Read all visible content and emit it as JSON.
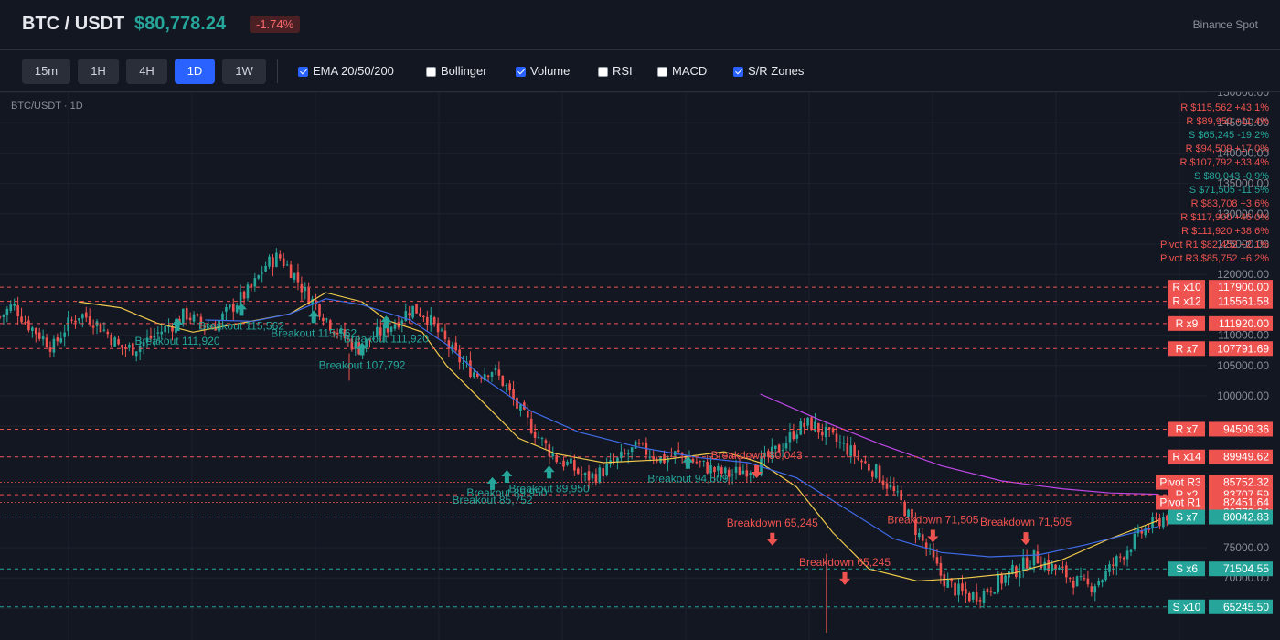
{
  "header": {
    "symbol": "BTC / USDT",
    "price": "$80,778.24",
    "change": "-1.74%",
    "exchange": "Binance Spot"
  },
  "toolbar": {
    "timeframes": [
      {
        "label": "15m",
        "active": false
      },
      {
        "label": "1H",
        "active": false
      },
      {
        "label": "4H",
        "active": false
      },
      {
        "label": "1D",
        "active": true
      },
      {
        "label": "1W",
        "active": false
      }
    ],
    "toggles": [
      {
        "label": "EMA 20/50/200",
        "checked": true
      },
      {
        "label": "Bollinger",
        "checked": false
      },
      {
        "label": "Volume",
        "checked": true
      },
      {
        "label": "RSI",
        "checked": false
      },
      {
        "label": "MACD",
        "checked": false
      },
      {
        "label": "S/R Zones",
        "checked": true
      }
    ]
  },
  "chart": {
    "label": "BTC/USDT · 1D",
    "colors": {
      "up": "#26a69a",
      "down": "#ef5350",
      "ema20": "#f0c94c",
      "ema50": "#3f6be8",
      "ema200": "#c147e9",
      "bg": "#131722",
      "grid": "#1e222d"
    }
  },
  "chart_data": {
    "type": "candlestick",
    "ylim": [
      60000,
      150000
    ],
    "y_ticks": [
      "150000.00",
      "145000.00",
      "140000.00",
      "135000.00",
      "130000.00",
      "125000.00",
      "120000.00",
      "115000.00",
      "110000.00",
      "105000.00",
      "100000.00",
      "95000.00",
      "90000.00",
      "85000.00",
      "80000.00",
      "75000.00",
      "70000.00",
      "65000.00"
    ],
    "current_price": "80778.24",
    "close_path": [
      113000,
      115000,
      112000,
      110000,
      108000,
      111500,
      113500,
      112500,
      110500,
      108000,
      107800,
      109000,
      110500,
      111800,
      113500,
      112000,
      111200,
      113500,
      115800,
      117800,
      121500,
      123000,
      120500,
      117000,
      114500,
      111500,
      109500,
      107800,
      109500,
      111000,
      112500,
      114500,
      113500,
      110500,
      107500,
      105000,
      103500,
      104500,
      102000,
      98000,
      95000,
      92000,
      89500,
      88500,
      86500,
      87000,
      88500,
      90000,
      91500,
      90500,
      89500,
      90500,
      89500,
      88500,
      87500,
      87000,
      87800,
      88500,
      90000,
      92000,
      94500,
      95500,
      94000,
      92500,
      91000,
      89000,
      87500,
      85000,
      82000,
      78000,
      74000,
      70000,
      68000,
      67000,
      67500,
      69000,
      70500,
      72000,
      73500,
      72000,
      71000,
      69500,
      68500,
      70000,
      72500,
      75000,
      77500,
      79000,
      80500,
      80778
    ],
    "ema_points": {
      "ema20": [
        [
          0.065,
          115500
        ],
        [
          0.1,
          114500
        ],
        [
          0.13,
          112000
        ],
        [
          0.16,
          110500
        ],
        [
          0.2,
          112000
        ],
        [
          0.24,
          113500
        ],
        [
          0.27,
          117000
        ],
        [
          0.3,
          115500
        ],
        [
          0.32,
          112500
        ],
        [
          0.35,
          110500
        ],
        [
          0.37,
          105000
        ],
        [
          0.4,
          99000
        ],
        [
          0.43,
          93000
        ],
        [
          0.46,
          90500
        ],
        [
          0.5,
          89000
        ],
        [
          0.55,
          89500
        ],
        [
          0.6,
          90800
        ],
        [
          0.63,
          89000
        ],
        [
          0.66,
          85000
        ],
        [
          0.69,
          77500
        ],
        [
          0.72,
          71500
        ],
        [
          0.76,
          69500
        ],
        [
          0.8,
          70000
        ],
        [
          0.84,
          70800
        ],
        [
          0.88,
          73000
        ],
        [
          0.92,
          76500
        ],
        [
          0.96,
          79500
        ]
      ],
      "ema50": [
        [
          0.17,
          112500
        ],
        [
          0.21,
          112300
        ],
        [
          0.24,
          113500
        ],
        [
          0.27,
          116000
        ],
        [
          0.3,
          115000
        ],
        [
          0.34,
          112500
        ],
        [
          0.37,
          108500
        ],
        [
          0.4,
          103000
        ],
        [
          0.44,
          97500
        ],
        [
          0.48,
          94000
        ],
        [
          0.53,
          91500
        ],
        [
          0.58,
          89800
        ],
        [
          0.62,
          89000
        ],
        [
          0.66,
          86500
        ],
        [
          0.7,
          81500
        ],
        [
          0.74,
          76500
        ],
        [
          0.78,
          74200
        ],
        [
          0.82,
          73500
        ],
        [
          0.86,
          73800
        ],
        [
          0.9,
          75500
        ],
        [
          0.96,
          78500
        ]
      ],
      "ema200": [
        [
          0.63,
          100300
        ],
        [
          0.68,
          96000
        ],
        [
          0.73,
          92000
        ],
        [
          0.78,
          88500
        ],
        [
          0.83,
          86000
        ],
        [
          0.88,
          84700
        ],
        [
          0.92,
          84000
        ],
        [
          0.96,
          83800
        ]
      ]
    },
    "price_labels": [
      {
        "text": "117900.00",
        "tag": "R x10",
        "value": 117900,
        "kind": "resistance"
      },
      {
        "text": "115561.58",
        "tag": "R x12",
        "value": 115561.58,
        "kind": "resistance"
      },
      {
        "text": "111920.00",
        "tag": "R x9",
        "value": 111920,
        "kind": "resistance"
      },
      {
        "text": "107791.69",
        "tag": "R x7",
        "value": 107791.69,
        "kind": "resistance"
      },
      {
        "text": "94509.36",
        "tag": "R x7",
        "value": 94509.36,
        "kind": "resistance"
      },
      {
        "text": "89949.62",
        "tag": "R x14",
        "value": 89949.62,
        "kind": "resistance"
      },
      {
        "text": "85752.32",
        "tag": "Pivot R3",
        "value": 85752.32,
        "kind": "pivot"
      },
      {
        "text": "83707.59",
        "tag": "R x2",
        "value": 83707.59,
        "kind": "resistance"
      },
      {
        "text": "82451.64",
        "tag": "Pivot R1",
        "value": 82451.64,
        "kind": "pivot"
      },
      {
        "text": "80778.24",
        "tag": "",
        "value": 80778.24,
        "kind": "current"
      },
      {
        "text": "80042.83",
        "tag": "S x7",
        "value": 80042.83,
        "kind": "support"
      },
      {
        "text": "71504.55",
        "tag": "S x6",
        "value": 71504.55,
        "kind": "support"
      },
      {
        "text": "65245.50",
        "tag": "S x10",
        "value": 65245.5,
        "kind": "support"
      }
    ],
    "level_list": [
      {
        "text": "R $115,562 +43.1%",
        "kind": "r"
      },
      {
        "text": "R $89,950 +11.4%",
        "kind": "r"
      },
      {
        "text": "S $65,245 -19.2%",
        "kind": "s"
      },
      {
        "text": "R $94,509 +17.0%",
        "kind": "r"
      },
      {
        "text": "R $107,792 +33.4%",
        "kind": "r"
      },
      {
        "text": "S $80,043 -0.9%",
        "kind": "s"
      },
      {
        "text": "S $71,505 -11.5%",
        "kind": "s"
      },
      {
        "text": "R $83,708 +3.6%",
        "kind": "r"
      },
      {
        "text": "R $117,900 +46.0%",
        "kind": "r"
      },
      {
        "text": "R $111,920 +38.6%",
        "kind": "r"
      },
      {
        "text": "Pivot R1 $82,452 +2.1%",
        "kind": "r"
      },
      {
        "text": "Pivot R3 $85,752 +6.2%",
        "kind": "r"
      }
    ],
    "annotations": [
      {
        "text": "Breakout 111,920",
        "x": 0.147,
        "value": 111000,
        "kind": "up"
      },
      {
        "text": "Breakout 115,562",
        "x": 0.2,
        "value": 113500,
        "kind": "up"
      },
      {
        "text": "Breakout 115,562",
        "x": 0.26,
        "value": 112300,
        "kind": "up"
      },
      {
        "text": "Breakout 111,920",
        "x": 0.32,
        "value": 111400,
        "kind": "up"
      },
      {
        "text": "Breakout 107,792",
        "x": 0.3,
        "value": 107000,
        "kind": "up"
      },
      {
        "text": "Breakout 89,950",
        "x": 0.42,
        "value": 86000,
        "kind": "up"
      },
      {
        "text": "Breakout 89,950",
        "x": 0.455,
        "value": 86700,
        "kind": "up"
      },
      {
        "text": "Breakout 85,752",
        "x": 0.408,
        "value": 84800,
        "kind": "up"
      },
      {
        "text": "Breakout 94,509",
        "x": 0.57,
        "value": 88300,
        "kind": "up"
      },
      {
        "text": "Breakdown 80,043",
        "x": 0.627,
        "value": 89600,
        "kind": "down"
      },
      {
        "text": "Breakdown 65,245",
        "x": 0.64,
        "value": 78500,
        "kind": "down"
      },
      {
        "text": "Breakdown 65,245",
        "x": 0.7,
        "value": 72000,
        "kind": "down"
      },
      {
        "text": "Breakdown 71,505",
        "x": 0.773,
        "value": 79000,
        "kind": "down"
      },
      {
        "text": "Breakdown 71,505",
        "x": 0.85,
        "value": 78600,
        "kind": "down"
      }
    ]
  }
}
